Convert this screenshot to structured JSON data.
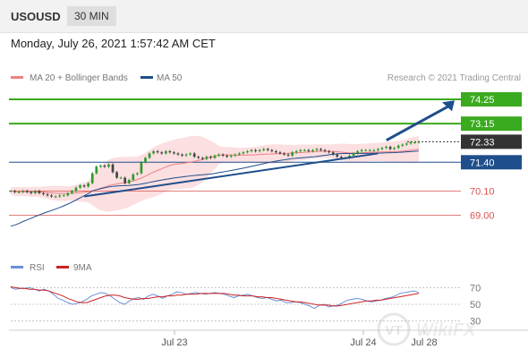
{
  "header": {
    "symbol": "USOUSD",
    "timeframe": "30 MIN",
    "datetime": "Monday, July 26, 2021 1:57:42 AM CET"
  },
  "legend": {
    "ma20": "MA 20 + Bollinger Bands",
    "ma50": "MA 50",
    "credit": "Research © 2021 Trading Central",
    "rsi": "RSI",
    "ma9": "9MA"
  },
  "watermark": "VT",
  "colors": {
    "green": "#3aaa1e",
    "blue": "#1f4e8c",
    "red": "#d9534f",
    "last": "#333333",
    "ma20": "#f08080",
    "band": "#fbd7da",
    "up": "#2e9a2e",
    "down": "#444444",
    "rsi": "#6b8ed6",
    "rsi_ma": "#cc2222"
  },
  "chart_data": [
    {
      "type": "line",
      "name": "price",
      "ylim": [
        67.6,
        74.9
      ],
      "ohlc_close": [
        70.1,
        70.05,
        70.05,
        70.1,
        70.05,
        70.0,
        70.1,
        70.0,
        69.95,
        69.9,
        69.85,
        69.85,
        69.9,
        69.9,
        70.0,
        70.1,
        70.25,
        70.35,
        70.3,
        70.45,
        70.9,
        71.2,
        71.25,
        71.2,
        71.3,
        70.95,
        70.7,
        70.7,
        70.45,
        70.6,
        70.85,
        70.9,
        71.4,
        71.6,
        71.8,
        71.9,
        71.85,
        71.8,
        71.9,
        71.85,
        71.8,
        71.75,
        71.7,
        71.75,
        71.8,
        71.65,
        71.6,
        71.55,
        71.65,
        71.6,
        71.7,
        71.75,
        71.7,
        71.65,
        71.7,
        71.75,
        71.8,
        71.85,
        71.9,
        71.95,
        71.9,
        71.95,
        72.0,
        71.95,
        71.9,
        71.85,
        71.8,
        71.75,
        71.7,
        71.85,
        71.9,
        71.95,
        71.95,
        71.9,
        71.95,
        72.0,
        71.95,
        71.9,
        71.85,
        71.75,
        71.65,
        71.6,
        71.6,
        71.7,
        71.8,
        71.9,
        71.95,
        71.95,
        71.95,
        71.95,
        72.0,
        72.05,
        72.1,
        72.0,
        72.05,
        72.15,
        72.2,
        72.25,
        72.3,
        72.3,
        72.33
      ],
      "levels": [
        {
          "value": 74.25,
          "label": "74.25",
          "kind": "resistance"
        },
        {
          "value": 73.15,
          "label": "73.15",
          "kind": "resistance"
        },
        {
          "value": 72.33,
          "label": "72.33",
          "kind": "last"
        },
        {
          "value": 71.4,
          "label": "71.40",
          "kind": "pivot"
        },
        {
          "value": 70.1,
          "label": "70.10",
          "kind": "support"
        },
        {
          "value": 69.0,
          "label": "69.00",
          "kind": "support"
        }
      ],
      "trendline": {
        "x": [
          0.18,
          0.9
        ],
        "y": [
          69.85,
          71.8
        ]
      },
      "arrow": {
        "x": [
          0.89,
          1.0
        ],
        "y": [
          72.4,
          74.2
        ]
      },
      "grid": false,
      "legend_position": "top-left"
    },
    {
      "type": "line",
      "name": "RSI",
      "ylim": [
        20,
        80
      ],
      "yticks": [
        70,
        50,
        30
      ],
      "xticks": [
        "Jul 23",
        "Jul 24",
        "Jul 28"
      ],
      "rsi": [
        70,
        68,
        69,
        69,
        70,
        68,
        66,
        68,
        66,
        62,
        57,
        55,
        52,
        50,
        51,
        53,
        56,
        60,
        62,
        64,
        63,
        60,
        56,
        52,
        50,
        54,
        57,
        58,
        56,
        60,
        62,
        60,
        57,
        60,
        62,
        65,
        64,
        62,
        63,
        64,
        63,
        62,
        63,
        64,
        63,
        62,
        60,
        58,
        60,
        61,
        62,
        60,
        58,
        57,
        58,
        56,
        54,
        55,
        52,
        52,
        53,
        52,
        50,
        48,
        45,
        49,
        50,
        47,
        48,
        49,
        52,
        55,
        56,
        57,
        56,
        54,
        53,
        54,
        55,
        57,
        58,
        60,
        63,
        64,
        65,
        66,
        64
      ],
      "rsi_ma": [
        71,
        70,
        69,
        69,
        68,
        68,
        67,
        67,
        66,
        64,
        62,
        60,
        57,
        55,
        53,
        52,
        52,
        54,
        56,
        58,
        60,
        61,
        61,
        60,
        58,
        57,
        56,
        56,
        57,
        57,
        58,
        59,
        59,
        60,
        60,
        61,
        61,
        62,
        62,
        62,
        63,
        63,
        63,
        63,
        63,
        63,
        62,
        61,
        61,
        60,
        60,
        60,
        59,
        59,
        58,
        58,
        57,
        56,
        55,
        54,
        53,
        53,
        52,
        51,
        50,
        49,
        49,
        49,
        48,
        48,
        49,
        50,
        51,
        52,
        53,
        54,
        54,
        55,
        55,
        56,
        57,
        58,
        59,
        60,
        61,
        62,
        63
      ]
    }
  ]
}
